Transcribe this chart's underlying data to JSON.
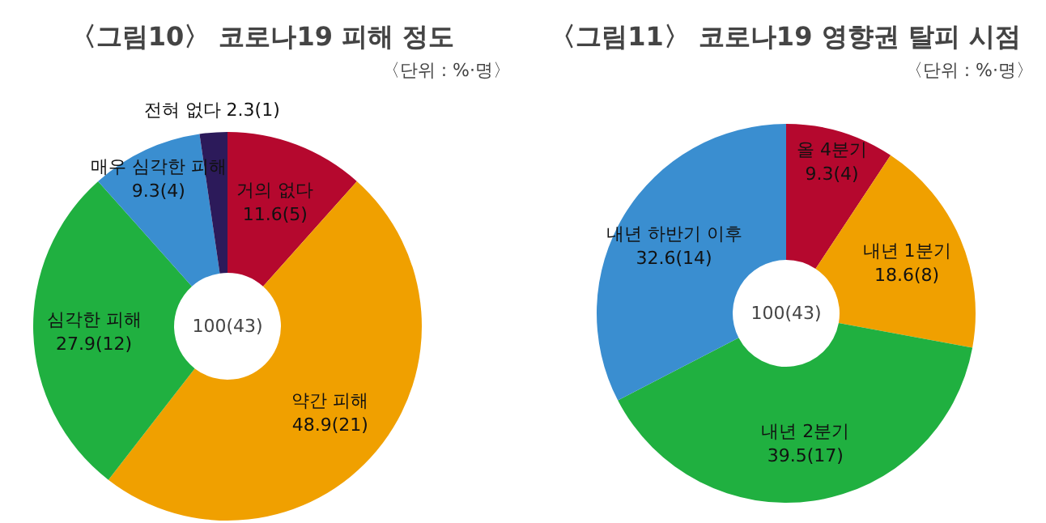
{
  "chart_data": [
    {
      "type": "donut",
      "title": "〈그림10〉 코로나19 피해 정도",
      "categories": [
        "거의 없다",
        "약간 피해",
        "심각한 피해",
        "매우 심각한 피해",
        "전혀 없다"
      ],
      "values": [
        11.6,
        48.9,
        27.9,
        9.3,
        2.3
      ],
      "value_labels": [
        "11.6(5)",
        "48.9(21)",
        "27.9(12)",
        "9.3(4)",
        "2.3(1)"
      ],
      "colors": [
        "#b5082e",
        "#f0a000",
        "#20b040",
        "#3a8ed0",
        "#2c1a5a"
      ],
      "annotations": [
        "〈단위 : %·명〉",
        "100(43)"
      ]
    },
    {
      "type": "donut",
      "title": "〈그림11〉 코로나19 영향권 탈피 시점",
      "categories": [
        "올 4분기",
        "내년 1분기",
        "내년 2분기",
        "내년 하반기 이후"
      ],
      "values": [
        9.3,
        18.6,
        39.5,
        32.6
      ],
      "value_labels": [
        "9.3(4)",
        "18.6(8)",
        "39.5(17)",
        "32.6(14)"
      ],
      "colors": [
        "#b5082e",
        "#f0a000",
        "#20b040",
        "#3a8ed0"
      ],
      "annotations": [
        "〈단위 : %·명〉",
        "100(43)"
      ]
    }
  ]
}
